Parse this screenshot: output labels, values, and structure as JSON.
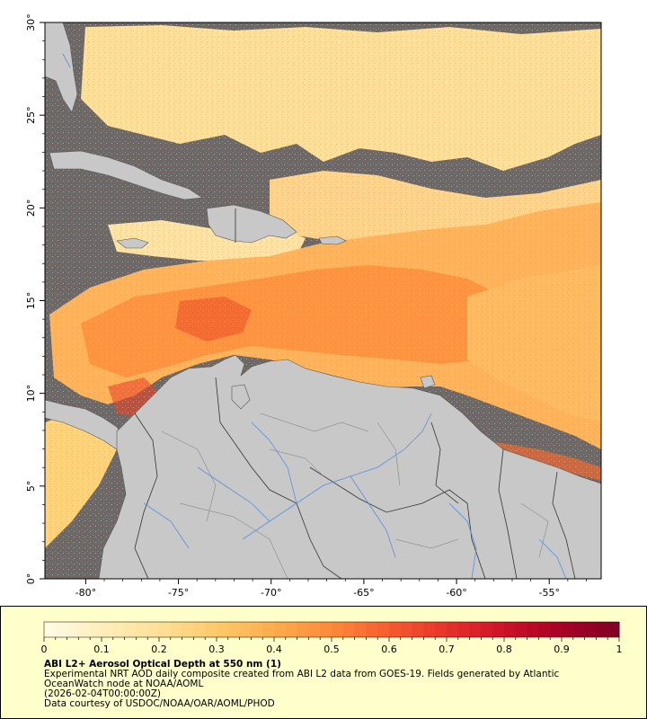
{
  "map": {
    "lat_labels": [
      "30°",
      "25°",
      "20°",
      "15°",
      "10°",
      "5°",
      "0°"
    ],
    "lon_labels": [
      "-80°",
      "-75°",
      "-70°",
      "-65°",
      "-60°",
      "-55°"
    ],
    "lat_values": [
      30,
      25,
      20,
      15,
      10,
      5,
      0
    ],
    "lon_values": [
      -80,
      -75,
      -70,
      -65,
      -60,
      -55
    ],
    "lat_range": [
      0,
      30
    ],
    "lon_range": [
      -82.2,
      -52.2
    ],
    "colors": {
      "no_data": "#696969",
      "land": "#c8c8c8",
      "coast": "#555555",
      "rivers": "#5b8fd9"
    }
  },
  "legend": {
    "title": "ABI L2+ Aerosol Optical Depth at 550 nm (1)",
    "line1": "Experimental NRT AOD daily composite created from ABI L2 data from GOES-19. Fields generated by Atlantic",
    "line2": "OceanWatch node at NOAA/AOML",
    "line3": "(2026-02-04T00:00:00Z)",
    "line4": "Data courtesy of USDOC/NOAA/OAR/AOML/PHOD",
    "colorbar_min": 0,
    "colorbar_max": 1,
    "tick_labels": [
      "0",
      "0.1",
      "0.2",
      "0.3",
      "0.4",
      "0.5",
      "0.6",
      "0.7",
      "0.8",
      "0.9",
      "1"
    ],
    "tick_values": [
      0,
      0.1,
      0.2,
      0.3,
      0.4,
      0.5,
      0.6,
      0.7,
      0.8,
      0.9,
      1
    ],
    "colormap": [
      "#fffbe6",
      "#ffeebb",
      "#fedf99",
      "#fec96a",
      "#fdac4d",
      "#fc8a3a",
      "#f65b2e",
      "#e6322a",
      "#cc1227",
      "#a80026",
      "#800026"
    ]
  }
}
